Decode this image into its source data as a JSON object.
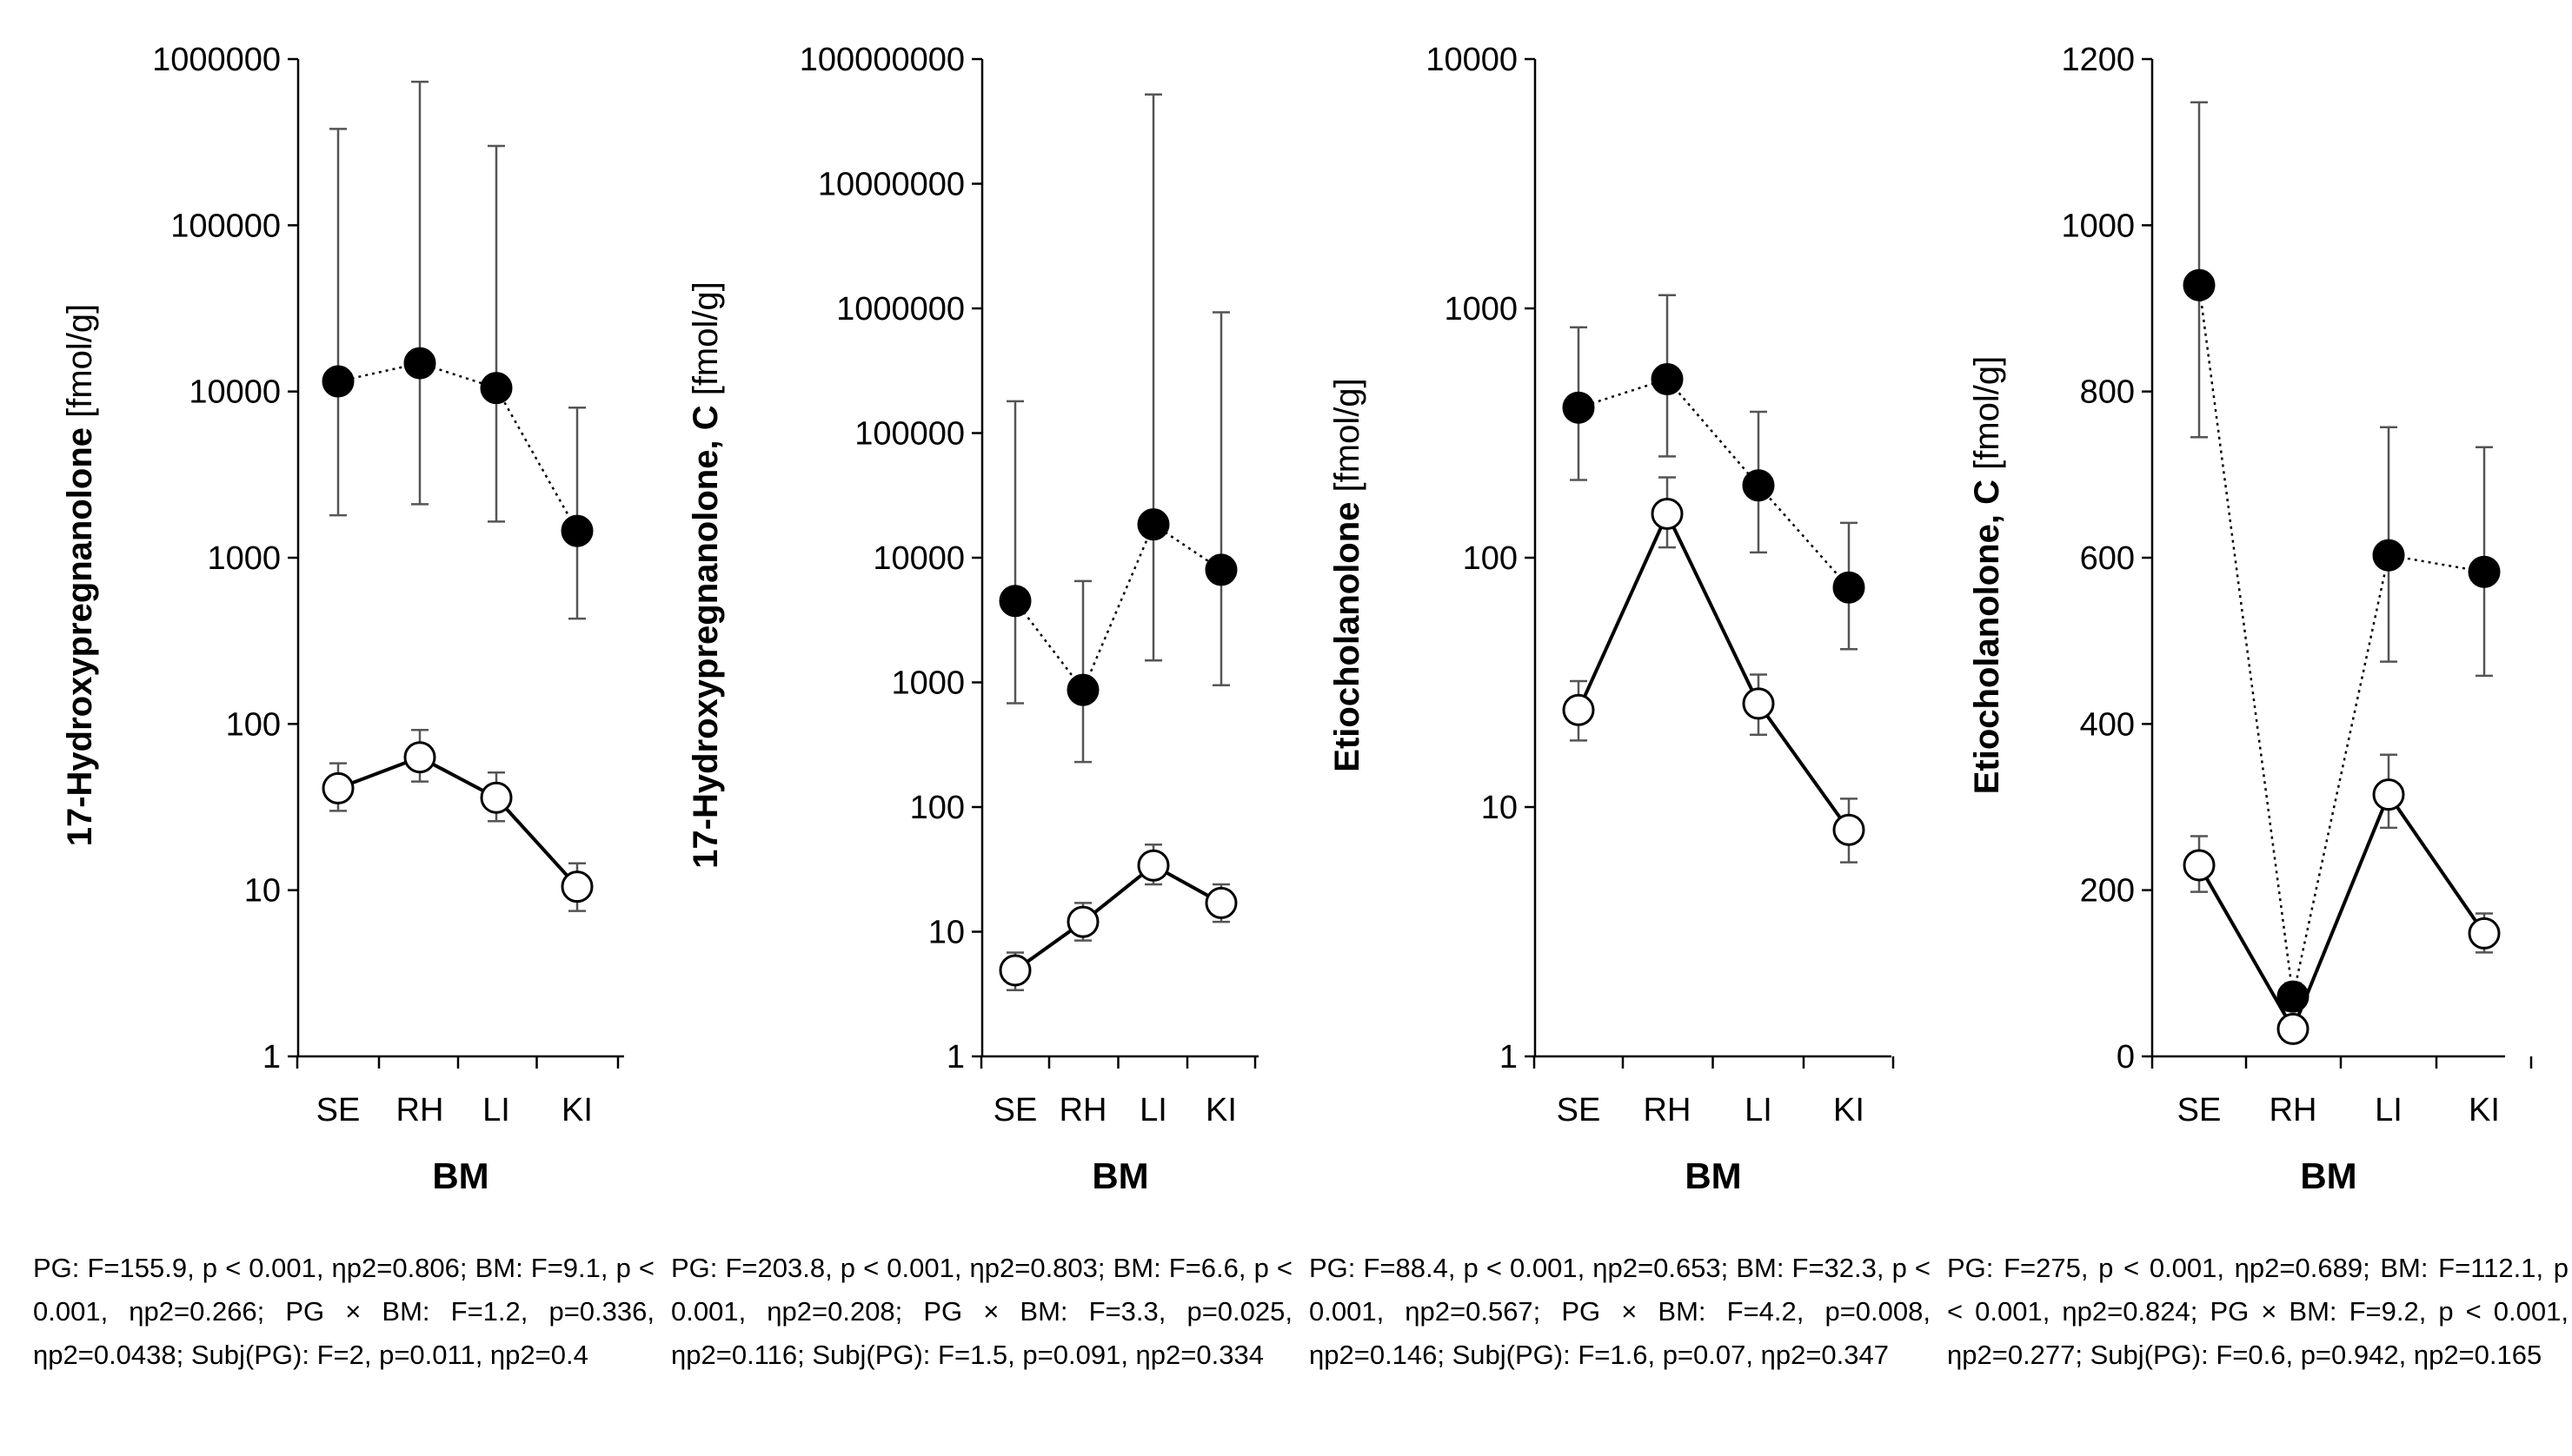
{
  "chart_data": [
    {
      "type": "line",
      "ylabel_bold": "17-Hydroxypregnanolone",
      "ylabel_unit": "[fmol/g]",
      "xlabel": "BM",
      "categories": [
        "SE",
        "RH",
        "LI",
        "KI"
      ],
      "yscale": "log",
      "ylim": [
        1,
        1000000
      ],
      "yticks": [
        "1",
        "10",
        "100",
        "1000",
        "10000",
        "100000",
        "1000000"
      ],
      "series": [
        {
          "marker": "filled",
          "line": "dotted",
          "values": [
            11500,
            14800,
            10500,
            1450
          ],
          "err_low": [
            1800,
            2100,
            1650,
            430
          ],
          "err_high": [
            380000,
            730000,
            300000,
            8000
          ]
        },
        {
          "marker": "open",
          "line": "solid",
          "values": [
            41,
            63,
            36,
            10.5
          ],
          "err_low": [
            30,
            45,
            26,
            7.5
          ],
          "err_high": [
            58,
            92,
            51,
            14.5
          ]
        }
      ],
      "caption": "PG: F=155.9, p < 0.001, ηp2=0.806; BM: F=9.1, p < 0.001, ηp2=0.266; PG × BM: F=1.2, p=0.336, ηp2=0.0438; Subj(PG): F=2, p=0.011, ηp2=0.4"
    },
    {
      "type": "line",
      "ylabel_bold": "17-Hydroxypregnanolone, C",
      "ylabel_unit": "[fmol/g]",
      "xlabel": "BM",
      "categories": [
        "SE",
        "RH",
        "LI",
        "KI"
      ],
      "yscale": "log",
      "ylim": [
        1,
        100000000
      ],
      "yticks": [
        "1",
        "10",
        "100",
        "1000",
        "10000",
        "100000",
        "1000000",
        "10000000",
        "100000000"
      ],
      "series": [
        {
          "marker": "filled",
          "line": "dotted",
          "values": [
            4500,
            870,
            18500,
            8000
          ],
          "err_low": [
            680,
            230,
            1500,
            950
          ],
          "err_high": [
            180000,
            6500,
            52000000,
            930000
          ]
        },
        {
          "marker": "open",
          "line": "solid",
          "values": [
            4.9,
            12,
            34,
            17
          ],
          "err_low": [
            3.4,
            8.5,
            24,
            12
          ],
          "err_high": [
            6.8,
            17,
            50,
            24
          ]
        }
      ],
      "caption": "PG: F=203.8, p < 0.001, ηp2=0.803; BM: F=6.6, p < 0.001, ηp2=0.208; PG × BM: F=3.3, p=0.025, ηp2=0.116; Subj(PG): F=1.5, p=0.091, ηp2=0.334"
    },
    {
      "type": "line",
      "ylabel_bold": "Etiocholanolone",
      "ylabel_unit": "[fmol/g]",
      "xlabel": "BM",
      "categories": [
        "SE",
        "RH",
        "LI",
        "KI"
      ],
      "yscale": "log",
      "ylim": [
        1,
        10000
      ],
      "yticks": [
        "1",
        "10",
        "100",
        "1000",
        "10000"
      ],
      "series": [
        {
          "marker": "filled",
          "line": "dotted",
          "values": [
            400,
            520,
            195,
            76
          ],
          "err_low": [
            205,
            255,
            105,
            43
          ],
          "err_high": [
            840,
            1130,
            385,
            138
          ]
        },
        {
          "marker": "open",
          "line": "solid",
          "values": [
            24.5,
            150,
            26,
            8.1
          ],
          "err_low": [
            18.5,
            110,
            19.5,
            6
          ],
          "err_high": [
            32,
            210,
            34,
            10.8
          ]
        }
      ],
      "caption": "PG: F=88.4, p < 0.001, ηp2=0.653; BM: F=32.3, p < 0.001, ηp2=0.567; PG × BM: F=4.2, p=0.008, ηp2=0.146; Subj(PG): F=1.6, p=0.07, ηp2=0.347"
    },
    {
      "type": "line",
      "ylabel_bold": "Etiocholanolone, C",
      "ylabel_unit": "[fmol/g]",
      "xlabel": "BM",
      "categories": [
        "SE",
        "RH",
        "LI",
        "KI"
      ],
      "yscale": "linear",
      "ylim": [
        0,
        1200
      ],
      "yticks": [
        "0",
        "200",
        "400",
        "600",
        "800",
        "1000",
        "1200"
      ],
      "series": [
        {
          "marker": "filled",
          "line": "dotted",
          "values": [
            928,
            72,
            603,
            583
          ],
          "err_low": [
            745,
            55,
            475,
            458
          ],
          "err_high": [
            1148,
            88,
            757,
            733
          ]
        },
        {
          "marker": "open",
          "line": "solid",
          "values": [
            230,
            33,
            315,
            148
          ],
          "err_low": [
            198,
            28,
            275,
            125
          ],
          "err_high": [
            265,
            40,
            363,
            172
          ]
        }
      ],
      "caption": "PG: F=275, p < 0.001, ηp2=0.689; BM: F=112.1, p < 0.001, ηp2=0.824; PG × BM: F=9.2, p < 0.001, ηp2=0.277; Subj(PG): F=0.6, p=0.942, ηp2=0.165"
    }
  ]
}
